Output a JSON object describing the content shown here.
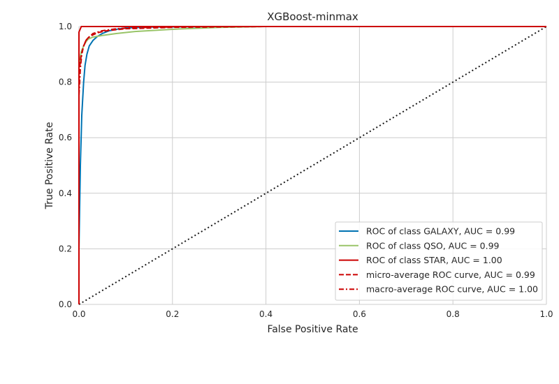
{
  "chart_data": {
    "type": "line",
    "title": "XGBoost-minmax",
    "xlabel": "False Positive Rate",
    "ylabel": "True Positive Rate",
    "xlim": [
      0.0,
      1.0
    ],
    "ylim": [
      0.0,
      1.0
    ],
    "xticks": [
      "0.0",
      "0.2",
      "0.4",
      "0.6",
      "0.8",
      "1.0"
    ],
    "yticks": [
      "0.0",
      "0.2",
      "0.4",
      "0.6",
      "0.8",
      "1.0"
    ],
    "grid": true,
    "legend_position": "lower-right",
    "series": [
      {
        "name": "ROC of class GALAXY, AUC = 0.99",
        "color": "#0072b2",
        "dash": "solid",
        "x": [
          0,
          0.0,
          0.003,
          0.006,
          0.01,
          0.013,
          0.017,
          0.022,
          0.03,
          0.04,
          0.05,
          0.065,
          0.08,
          0.1,
          0.15,
          0.3,
          1.0
        ],
        "y": [
          0,
          0.2,
          0.5,
          0.68,
          0.8,
          0.86,
          0.9,
          0.93,
          0.95,
          0.965,
          0.975,
          0.985,
          0.99,
          0.995,
          0.998,
          1.0,
          1.0
        ]
      },
      {
        "name": "ROC of class QSO, AUC = 0.99",
        "color": "#99c468",
        "dash": "solid",
        "x": [
          0,
          0.0,
          0.002,
          0.005,
          0.01,
          0.015,
          0.02,
          0.03,
          0.05,
          0.08,
          0.12,
          0.2,
          0.3,
          0.4,
          1.0
        ],
        "y": [
          0,
          0.85,
          0.88,
          0.91,
          0.93,
          0.945,
          0.955,
          0.962,
          0.968,
          0.975,
          0.982,
          0.99,
          0.997,
          1.0,
          1.0
        ]
      },
      {
        "name": "ROC of class STAR, AUC = 1.00",
        "color": "#cc0000",
        "dash": "solid",
        "x": [
          0,
          0.0,
          0.005,
          0.01,
          1.0
        ],
        "y": [
          0,
          0.98,
          1.0,
          1.0,
          1.0
        ]
      },
      {
        "name": "micro-average ROC curve, AUC = 0.99",
        "color": "#cc0000",
        "dash": "dashed",
        "x": [
          0,
          0.0,
          0.002,
          0.005,
          0.01,
          0.015,
          0.02,
          0.03,
          0.04,
          0.06,
          0.1,
          0.2,
          0.4,
          1.0
        ],
        "y": [
          0,
          0.8,
          0.86,
          0.9,
          0.93,
          0.95,
          0.96,
          0.97,
          0.978,
          0.985,
          0.992,
          0.997,
          1.0,
          1.0
        ]
      },
      {
        "name": "macro-average ROC curve, AUC = 1.00",
        "color": "#cc0000",
        "dash": "dashdot",
        "x": [
          0,
          0.0,
          0.003,
          0.006,
          0.01,
          0.015,
          0.02,
          0.03,
          0.05,
          0.08,
          0.12,
          0.25,
          1.0
        ],
        "y": [
          0,
          0.75,
          0.85,
          0.9,
          0.93,
          0.95,
          0.96,
          0.975,
          0.985,
          0.992,
          0.996,
          1.0,
          1.0
        ]
      }
    ],
    "reference_line": {
      "color": "#1a1a1a",
      "dash": "dotted",
      "x": [
        0,
        1
      ],
      "y": [
        0,
        1
      ]
    }
  }
}
